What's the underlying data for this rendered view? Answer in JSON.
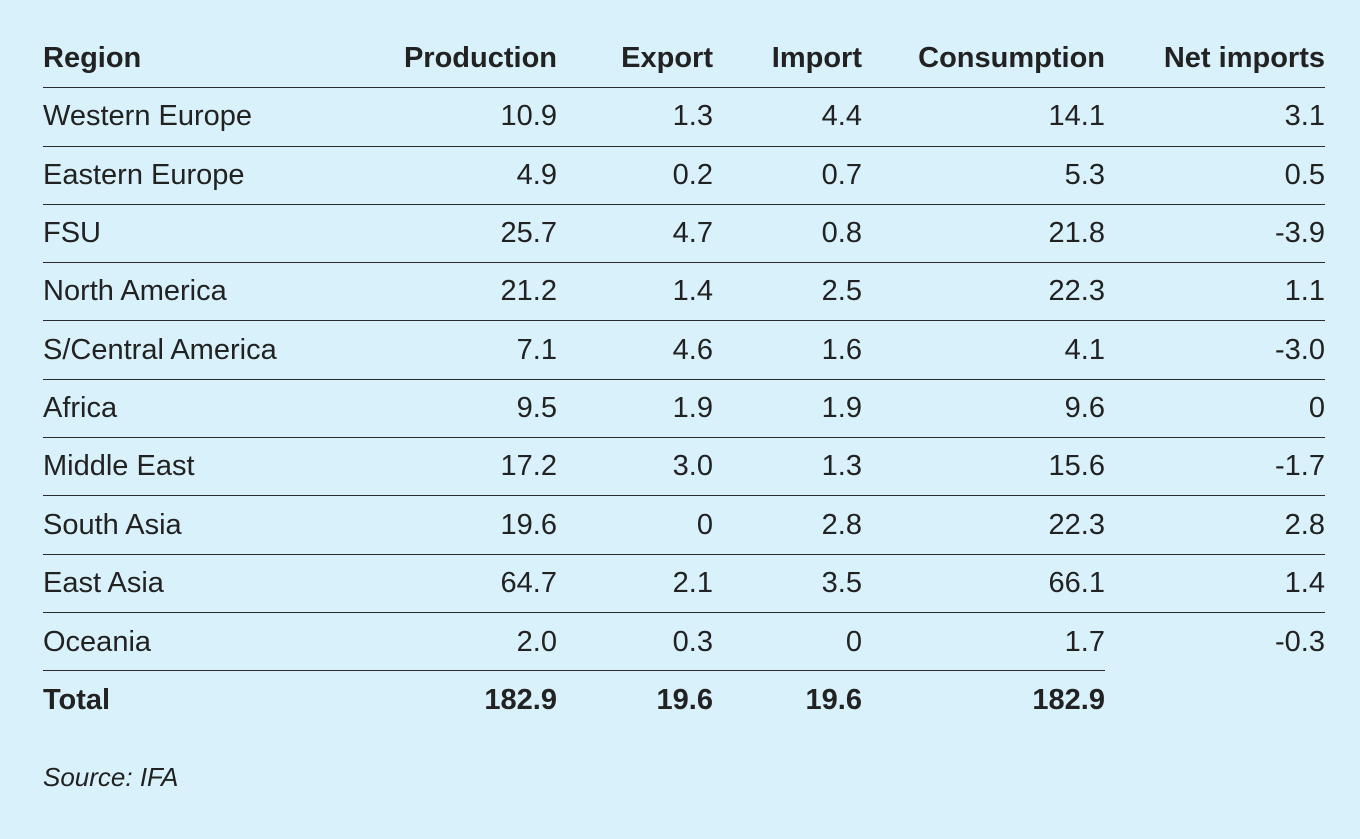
{
  "table": {
    "headers": {
      "region": "Region",
      "production": "Production",
      "export": "Export",
      "import": "Import",
      "consumption": "Consumption",
      "net_imports": "Net imports"
    },
    "rows": [
      {
        "region": "Western Europe",
        "production": "10.9",
        "export": "1.3",
        "import": "4.4",
        "consumption": "14.1",
        "net_imports": "3.1"
      },
      {
        "region": "Eastern Europe",
        "production": "4.9",
        "export": "0.2",
        "import": "0.7",
        "consumption": "5.3",
        "net_imports": "0.5"
      },
      {
        "region": "FSU",
        "production": "25.7",
        "export": "4.7",
        "import": "0.8",
        "consumption": "21.8",
        "net_imports": "-3.9"
      },
      {
        "region": "North America",
        "production": "21.2",
        "export": "1.4",
        "import": "2.5",
        "consumption": "22.3",
        "net_imports": "1.1"
      },
      {
        "region": "S/Central America",
        "production": "7.1",
        "export": "4.6",
        "import": "1.6",
        "consumption": "4.1",
        "net_imports": "-3.0"
      },
      {
        "region": "Africa",
        "production": "9.5",
        "export": "1.9",
        "import": "1.9",
        "consumption": "9.6",
        "net_imports": "0"
      },
      {
        "region": "Middle East",
        "production": "17.2",
        "export": "3.0",
        "import": "1.3",
        "consumption": "15.6",
        "net_imports": "-1.7"
      },
      {
        "region": "South Asia",
        "production": "19.6",
        "export": "0",
        "import": "2.8",
        "consumption": "22.3",
        "net_imports": "2.8"
      },
      {
        "region": "East Asia",
        "production": "64.7",
        "export": "2.1",
        "import": "3.5",
        "consumption": "66.1",
        "net_imports": "1.4"
      },
      {
        "region": "Oceania",
        "production": "2.0",
        "export": "0.3",
        "import": "0",
        "consumption": "1.7",
        "net_imports": "-0.3"
      }
    ],
    "total": {
      "region": "Total",
      "production": "182.9",
      "export": "19.6",
      "import": "19.6",
      "consumption": "182.9"
    }
  },
  "source": "Source: IFA",
  "colors": {
    "background": "#d8f1fb",
    "text": "#222222",
    "rule": "#2b2b2b"
  }
}
